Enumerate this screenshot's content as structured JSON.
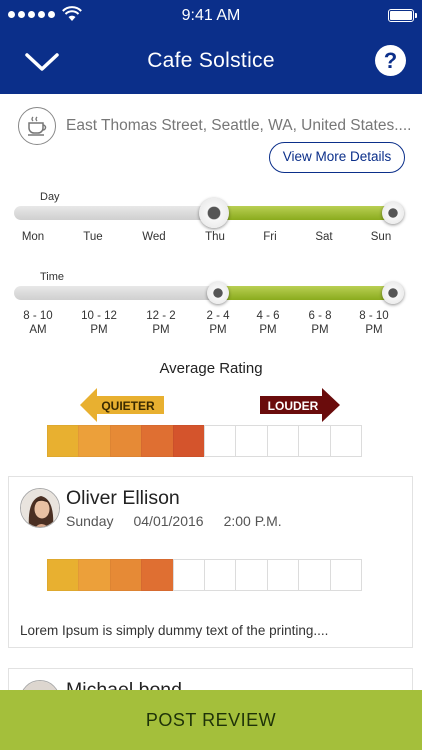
{
  "status_bar": {
    "time": "9:41 AM"
  },
  "header": {
    "title": "Cafe Solstice",
    "back_icon": "chevron-down-icon",
    "help_icon": "help-icon"
  },
  "location": {
    "icon": "coffee-cup-icon",
    "address": "East Thomas Street, Seattle, WA, United States....",
    "details_button": "View More Details"
  },
  "day_filter": {
    "label": "Day",
    "ticks": [
      "Mon",
      "Tue",
      "Wed",
      "Thu",
      "Fri",
      "Sat",
      "Sun"
    ],
    "selected_start": "Thu",
    "selected_end": "Sun"
  },
  "time_filter": {
    "label": "Time",
    "ticks": [
      [
        "8 - 10",
        "AM"
      ],
      [
        "10 - 12",
        "PM"
      ],
      [
        "12 - 2",
        "PM"
      ],
      [
        "2 - 4",
        "PM"
      ],
      [
        "4 - 6",
        "PM"
      ],
      [
        "6 - 8",
        "PM"
      ],
      [
        "8 - 10",
        "PM"
      ]
    ],
    "selected_start": "2 - 4 PM",
    "selected_end": "8 - 10 PM"
  },
  "average_rating": {
    "title": "Average Rating",
    "quieter_label": "QUIETER",
    "louder_label": "LOUDER",
    "level": 5,
    "max": 10
  },
  "rating_colors": [
    "#e8b030",
    "#eca03a",
    "#e68a36",
    "#df6f32",
    "#d4542c"
  ],
  "reviews": [
    {
      "name": "Oliver Ellison",
      "day": "Sunday",
      "date": "04/01/2016",
      "time": "2:00 P.M.",
      "level": 4,
      "max": 10,
      "text": "Lorem Ipsum is simply dummy text of the printing...."
    },
    {
      "name": "Michael bond"
    }
  ],
  "footer": {
    "post_review": "POST REVIEW"
  }
}
